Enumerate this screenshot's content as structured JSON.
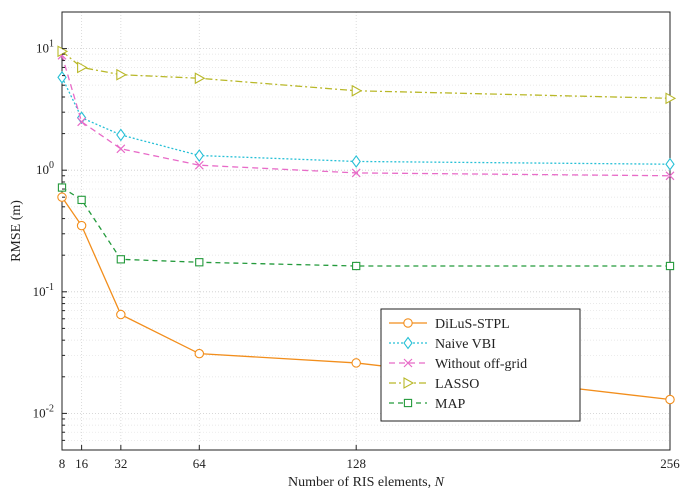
{
  "chart_data": {
    "type": "line",
    "xlabel": "Number of RIS elements, ",
    "xlabel_var": "N",
    "ylabel": "RMSE (m)",
    "x_scale": "linear",
    "y_scale": "log",
    "xlim": [
      8,
      256
    ],
    "ylim": [
      0.005,
      20
    ],
    "x_ticks": [
      8,
      16,
      32,
      64,
      128,
      256
    ],
    "y_ticks": [
      {
        "value": 0.01,
        "base": "10",
        "exp": "-2"
      },
      {
        "value": 0.1,
        "base": "10",
        "exp": "-1"
      },
      {
        "value": 1,
        "base": "10",
        "exp": "0"
      },
      {
        "value": 10,
        "base": "10",
        "exp": "1"
      }
    ],
    "grid": true,
    "legend_position": "bottom-right",
    "x": [
      8,
      16,
      32,
      64,
      128,
      256
    ],
    "series": [
      {
        "name": "DiLuS-STPL",
        "color": "#f28e1c",
        "dash": "",
        "marker": "circle",
        "values": [
          0.6,
          0.35,
          0.065,
          0.031,
          0.026,
          0.013
        ]
      },
      {
        "name": "Naive VBI",
        "color": "#27c0d6",
        "dash": "2,2",
        "marker": "diamond",
        "values": [
          5.8,
          2.7,
          1.95,
          1.32,
          1.18,
          1.12
        ]
      },
      {
        "name": "Without off-grid",
        "color": "#e86bc8",
        "dash": "6,4",
        "marker": "x",
        "values": [
          8.8,
          2.5,
          1.5,
          1.1,
          0.95,
          0.9
        ]
      },
      {
        "name": "LASSO",
        "color": "#b9b829",
        "dash": "7,3,2,3",
        "marker": "triangle-right",
        "values": [
          9.5,
          7.0,
          6.1,
          5.7,
          4.5,
          3.9
        ]
      },
      {
        "name": "MAP",
        "color": "#239a3b",
        "dash": "5,4",
        "marker": "square",
        "values": [
          0.72,
          0.57,
          0.185,
          0.175,
          0.163,
          0.163
        ]
      }
    ]
  }
}
